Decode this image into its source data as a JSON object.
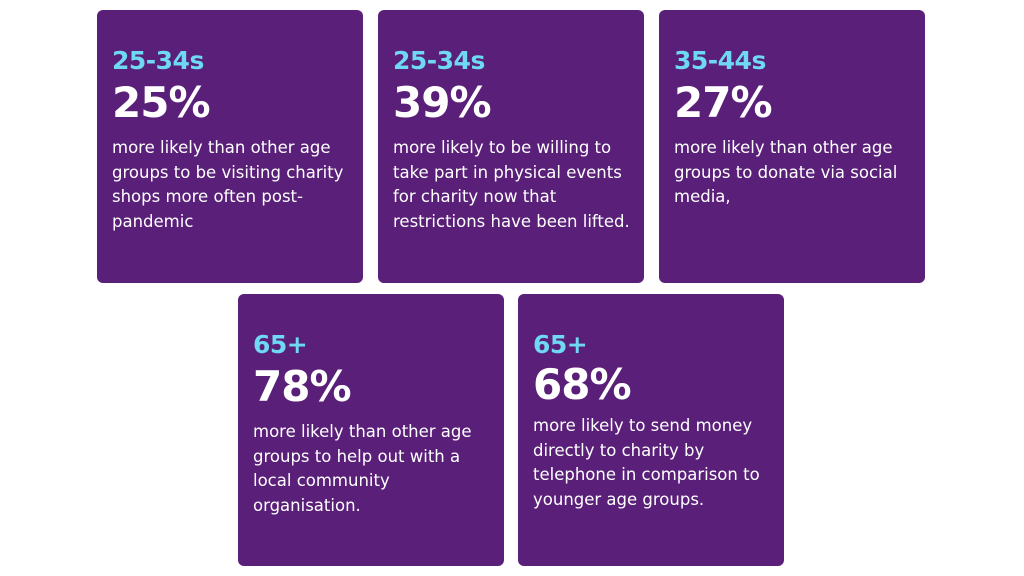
{
  "cards": [
    {
      "age_group": "25-34s",
      "percentage": "25%",
      "description": "more likely than other age groups to be visiting charity shops more often post-pandemic"
    },
    {
      "age_group": "25-34s",
      "percentage": "39%",
      "description": "more likely to be willing to take part in physical events for charity now that restrictions have been lifted."
    },
    {
      "age_group": "35-44s",
      "percentage": "27%",
      "description": "more likely than other age groups to donate via social media,"
    },
    {
      "age_group": "65+",
      "percentage": "78%",
      "description": "more likely than other age groups to help out with a local community organisation."
    },
    {
      "age_group": "65+",
      "percentage": "68%",
      "description": "more likely to send money directly to charity by telephone in comparison to younger age groups."
    }
  ],
  "colors": {
    "card_background": "#5a2079",
    "age_accent": "#6fd8f2",
    "text": "#ffffff",
    "page_background": "#ffffff"
  }
}
